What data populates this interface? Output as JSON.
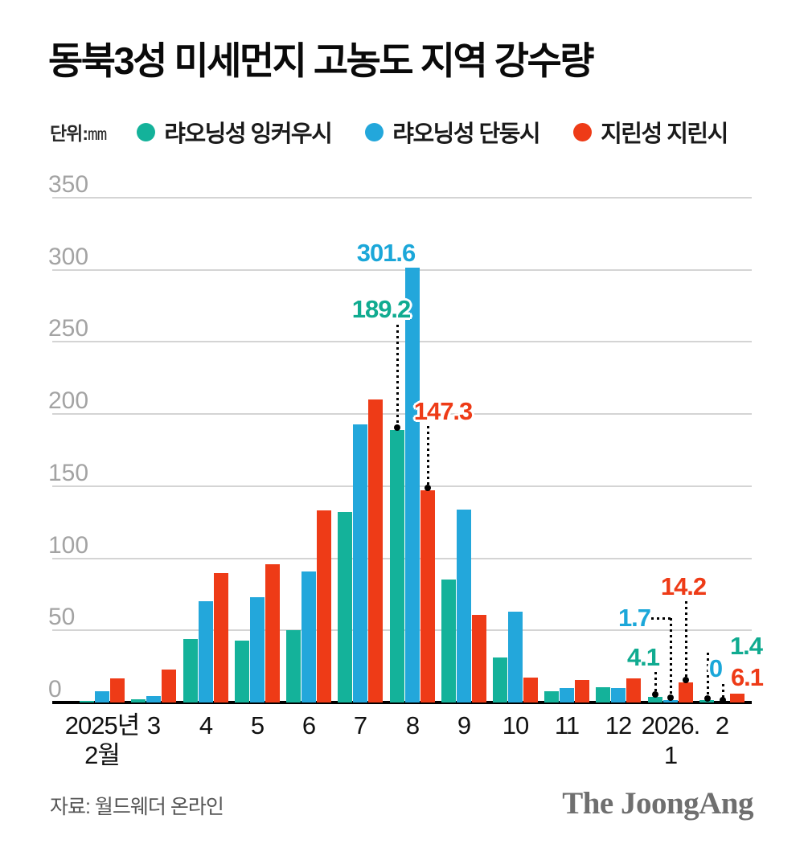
{
  "header": {
    "title": "동북3성 미세먼지 고농도 지역 강수량"
  },
  "legend": {
    "unit_prefix": "단위:",
    "unit": "mm"
  },
  "chart_data": {
    "type": "bar",
    "title": "동북3성 미세먼지 고농도 지역 강수량",
    "unit": "mm",
    "xlabel": "",
    "ylabel": "강수량(mm)",
    "ylim": [
      0,
      350
    ],
    "yticks": [
      0,
      50,
      100,
      150,
      200,
      250,
      300,
      350
    ],
    "grid": true,
    "legend_position": "top",
    "categories": [
      "2025년\n2월",
      "3",
      "4",
      "5",
      "6",
      "7",
      "8",
      "9",
      "10",
      "11",
      "12",
      "2026.\n1",
      "2"
    ],
    "series": [
      {
        "name": "랴오닝성 잉커우시",
        "color": "#14b29a",
        "values": [
          1,
          2.5,
          44,
          43,
          50,
          132,
          189.2,
          85,
          31,
          8,
          10.5,
          4.1,
          1.4
        ]
      },
      {
        "name": "랴오닝성 단둥시",
        "color": "#23a7db",
        "values": [
          8,
          4.5,
          70,
          73,
          91,
          193,
          301.6,
          134,
          63,
          10,
          10,
          1.7,
          0
        ]
      },
      {
        "name": "지린성 지린시",
        "color": "#ee3b17",
        "values": [
          16.5,
          23,
          90,
          96,
          133,
          210,
          147.3,
          61,
          17,
          15.5,
          16.5,
          14.2,
          6.1
        ]
      }
    ],
    "annotations": [
      {
        "id": "dandong-aug",
        "text": "301.6",
        "value": 301.6,
        "series": 1,
        "category_index": 6,
        "color": "#1ba7d9"
      },
      {
        "id": "yingkou-aug",
        "text": "189.2",
        "value": 189.2,
        "series": 0,
        "category_index": 6,
        "color": "#10ab90"
      },
      {
        "id": "jilin-aug",
        "text": "147.3",
        "value": 147.3,
        "series": 2,
        "category_index": 6,
        "color": "#ee3b17"
      },
      {
        "id": "yingkou-jan",
        "text": "4.1",
        "value": 4.1,
        "series": 0,
        "category_index": 11,
        "color": "#10ab90"
      },
      {
        "id": "dandong-jan",
        "text": "1.7",
        "value": 1.7,
        "series": 1,
        "category_index": 11,
        "color": "#1ba7d9"
      },
      {
        "id": "jilin-jan",
        "text": "14.2",
        "value": 14.2,
        "series": 2,
        "category_index": 11,
        "color": "#ee3b17"
      },
      {
        "id": "yingkou-feb",
        "text": "1.4",
        "value": 1.4,
        "series": 0,
        "category_index": 12,
        "color": "#10ab90"
      },
      {
        "id": "dandong-feb",
        "text": "0",
        "value": 0,
        "series": 1,
        "category_index": 12,
        "color": "#1ba7d9"
      },
      {
        "id": "jilin-feb",
        "text": "6.1",
        "value": 6.1,
        "series": 2,
        "category_index": 12,
        "color": "#ee3b17"
      }
    ]
  },
  "footer": {
    "source": "자료: 월드웨더 온라인",
    "logo": "The JoongAng"
  }
}
